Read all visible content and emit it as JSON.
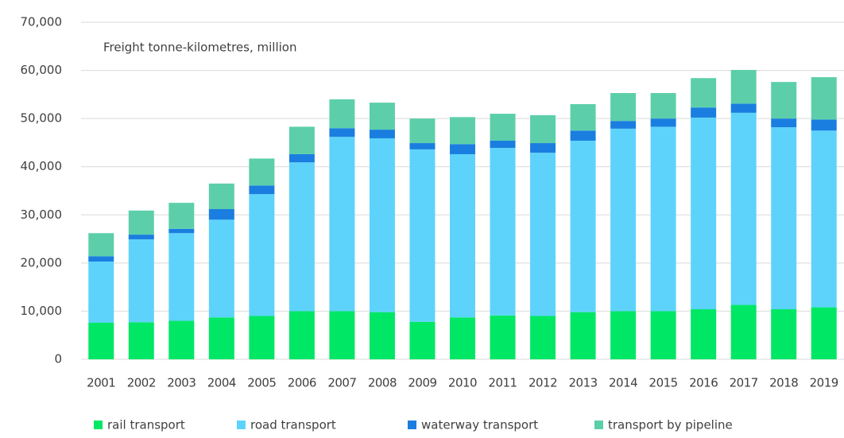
{
  "chart_data": {
    "type": "stacked_bar",
    "annotation": "Freight tonne-kilometres, million",
    "categories": [
      "2001",
      "2002",
      "2003",
      "2004",
      "2005",
      "2006",
      "2007",
      "2008",
      "2009",
      "2010",
      "2011",
      "2012",
      "2013",
      "2014",
      "2015",
      "2016",
      "2017",
      "2018",
      "2019"
    ],
    "series": [
      {
        "name": "rail transport",
        "color": "#00e765",
        "values": [
          7600,
          7700,
          8000,
          8700,
          9000,
          10000,
          10000,
          9800,
          7800,
          8700,
          9100,
          9000,
          9800,
          10000,
          10000,
          10400,
          11300,
          10400,
          10800
        ]
      },
      {
        "name": "road transport",
        "color": "#5dd3fc",
        "values": [
          12700,
          17200,
          18200,
          20300,
          25300,
          30900,
          36200,
          36100,
          35800,
          33900,
          34800,
          33900,
          35600,
          37900,
          38300,
          39800,
          39900,
          37800,
          36700
        ]
      },
      {
        "name": "waterway transport",
        "color": "#1a7ee0",
        "values": [
          1100,
          1000,
          900,
          2200,
          1800,
          1700,
          1800,
          1800,
          1300,
          2100,
          1500,
          2000,
          2100,
          1600,
          1700,
          2100,
          1900,
          1800,
          2300
        ]
      },
      {
        "name": "transport by pipeline",
        "color": "#5ccfaa",
        "values": [
          4800,
          5000,
          5400,
          5300,
          5600,
          5700,
          6000,
          5600,
          5100,
          5600,
          5600,
          5800,
          5500,
          5800,
          5300,
          6100,
          7000,
          7600,
          8800
        ]
      }
    ],
    "ylim": [
      0,
      70000
    ],
    "yticks": [
      0,
      {
        "value": 10000,
        "label": "10,000"
      },
      {
        "value": 20000,
        "label": "20,000"
      },
      {
        "value": 30000,
        "label": "30,000"
      },
      {
        "value": 40000,
        "label": "40,000"
      },
      {
        "value": 50000,
        "label": "50,000"
      },
      {
        "value": 60000,
        "label": "60,000"
      },
      {
        "value": 70000,
        "label": "70,000"
      }
    ],
    "grid": true,
    "legend": "bottom"
  }
}
